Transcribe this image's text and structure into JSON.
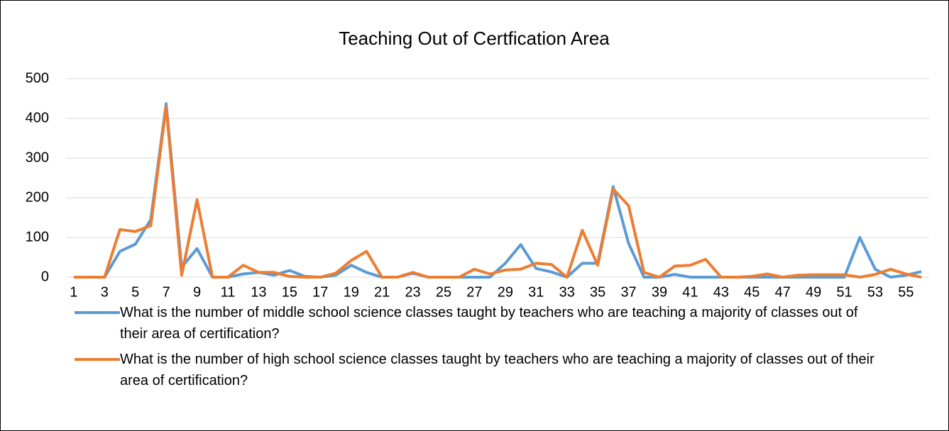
{
  "chart_data": {
    "type": "line",
    "title": "Teaching Out of Certfication Area",
    "categories": [
      1,
      null,
      3,
      null,
      5,
      null,
      7,
      null,
      9,
      null,
      11,
      null,
      13,
      null,
      15,
      null,
      17,
      null,
      19,
      null,
      21,
      null,
      23,
      null,
      25,
      null,
      27,
      null,
      29,
      null,
      31,
      null,
      33,
      null,
      35,
      null,
      37,
      null,
      39,
      null,
      41,
      null,
      43,
      null,
      45,
      null,
      47,
      null,
      49,
      null,
      51,
      null,
      53,
      null,
      55,
      null
    ],
    "series": [
      {
        "name": "What is the number of middle school science classes taught by teachers who are teaching a majority of classes out of their area of certification?",
        "color": "#5b9bd5",
        "values": [
          0,
          0,
          0,
          65,
          83,
          145,
          437,
          25,
          72,
          0,
          0,
          8,
          12,
          5,
          17,
          2,
          0,
          5,
          30,
          12,
          0,
          0,
          10,
          0,
          0,
          0,
          0,
          0,
          35,
          82,
          22,
          13,
          0,
          35,
          35,
          228,
          85,
          0,
          0,
          7,
          0,
          0,
          0,
          0,
          0,
          0,
          0,
          0,
          0,
          0,
          0,
          100,
          20,
          0,
          5,
          14
        ]
      },
      {
        "name": "What is the number of high school science classes taught by teachers who are teaching a majority of classes out of their area of certification?",
        "color": "#ed7d31",
        "values": [
          0,
          0,
          0,
          120,
          115,
          130,
          430,
          5,
          195,
          0,
          0,
          30,
          12,
          12,
          2,
          0,
          0,
          10,
          42,
          65,
          0,
          0,
          12,
          0,
          0,
          0,
          20,
          8,
          18,
          20,
          35,
          32,
          0,
          118,
          30,
          222,
          180,
          12,
          0,
          28,
          30,
          45,
          0,
          0,
          2,
          8,
          0,
          5,
          6,
          6,
          6,
          0,
          7,
          20,
          8,
          0
        ]
      }
    ],
    "ylim": [
      0,
      500
    ],
    "yticks": [
      0,
      100,
      200,
      300,
      400,
      500
    ],
    "grid": true
  }
}
